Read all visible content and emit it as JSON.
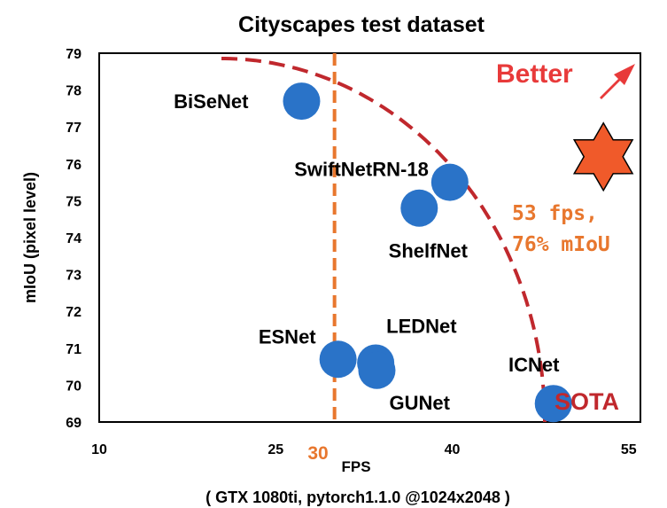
{
  "chart_data": {
    "type": "scatter",
    "title": "Cityscapes test dataset",
    "xlabel": "FPS",
    "ylabel": "mIoU (pixel level)",
    "subtitle": "( GTX 1080ti, pytorch1.1.0 @1024x2048 )",
    "xlim": [
      10,
      56
    ],
    "ylim": [
      69,
      79
    ],
    "xticks": [
      "10",
      "25",
      "40",
      "55"
    ],
    "xtick_values": [
      10,
      25,
      40,
      55
    ],
    "yticks": [
      "69",
      "70",
      "71",
      "72",
      "73",
      "74",
      "75",
      "76",
      "77",
      "78",
      "79"
    ],
    "ytick_values": [
      69,
      70,
      71,
      72,
      73,
      74,
      75,
      76,
      77,
      78,
      79
    ],
    "grid": false,
    "points": [
      {
        "label": "BiSeNet",
        "x": 27.2,
        "y": 77.7
      },
      {
        "label": "SwiftNetRN-18",
        "x": 39.8,
        "y": 75.5
      },
      {
        "label": "ShelfNet",
        "x": 37.2,
        "y": 74.8
      },
      {
        "label": "ESNet",
        "x": 30.3,
        "y": 70.7
      },
      {
        "label": "LEDNet",
        "x": 33.5,
        "y": 70.6
      },
      {
        "label": "GUNet",
        "x": 33.6,
        "y": 70.4
      },
      {
        "label": "ICNet",
        "x": 48.6,
        "y": 69.5
      }
    ],
    "point_color": "#2a73c8",
    "reference_line": {
      "x": 30,
      "label": "30",
      "color": "#e8772e"
    },
    "star": {
      "x": 53,
      "y": 76,
      "label_line1": "53 fps,",
      "label_line2": "76% mIoU",
      "color": "#f05a2a"
    },
    "better_label": "Better",
    "better_color": "#e83a3a",
    "sota_label": "SOTA",
    "sota_color": "#c0282d",
    "frontier_color": "#c0282d"
  }
}
